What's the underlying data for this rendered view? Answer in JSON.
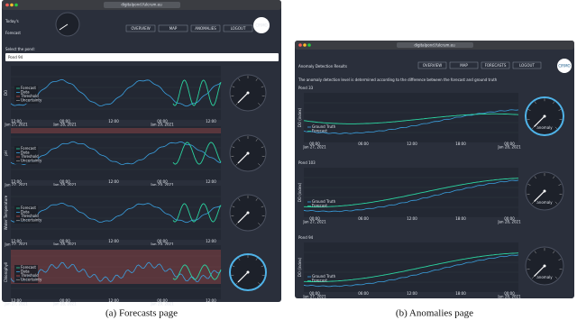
{
  "left_window": {
    "url": "digitalpond.fulcrum.eu",
    "title_line1": "Today's",
    "title_line2": "Forecast",
    "nav": [
      "OVERVIEW",
      "MAP",
      "ANOMALIES",
      "LOGOUT"
    ],
    "select_label": "Select the pond:",
    "selected_pond": "Pond 94",
    "legend": [
      "Forecast",
      "Data",
      "Threshold",
      "Uncertainty"
    ],
    "x_ticks": [
      {
        "time": "12:00",
        "date": "Jan 27, 2021"
      },
      {
        "time": "00:00",
        "date": "Jan 28, 2021"
      },
      {
        "time": "12:00"
      },
      {
        "time": "00:00",
        "date": "Jan 29, 2021"
      },
      {
        "time": "12:00"
      }
    ],
    "panels": [
      {
        "y_label": "DO"
      },
      {
        "y_label": "pH"
      },
      {
        "y_label": "Water Temperature"
      },
      {
        "y_label": "Chlorophyll"
      }
    ]
  },
  "right_window": {
    "url": "digitalpond.fulcrum.eu",
    "title": "Anomaly Detection Results",
    "nav": [
      "OVERVIEW",
      "MAP",
      "FORECASTS",
      "LOGOUT"
    ],
    "description": "The anomaly detection level is determined according to the difference between the forecast and ground truth",
    "legend": [
      "Ground Truth",
      "Forecast"
    ],
    "y_label": "DO (index)",
    "gauge_label": "anomaly",
    "x_ticks": [
      {
        "time": "00:00",
        "date": "Jan 27, 2021"
      },
      {
        "time": "06:00"
      },
      {
        "time": "12:00"
      },
      {
        "time": "18:00"
      },
      {
        "time": "00:00",
        "date": "Jan 28, 2021"
      }
    ],
    "panels": [
      {
        "pond": "Pond 33"
      },
      {
        "pond": "Pond 103"
      },
      {
        "pond": "Pond 94"
      }
    ]
  },
  "captions": [
    "(a) Forecasts page",
    "(b) Anomalies page"
  ]
}
